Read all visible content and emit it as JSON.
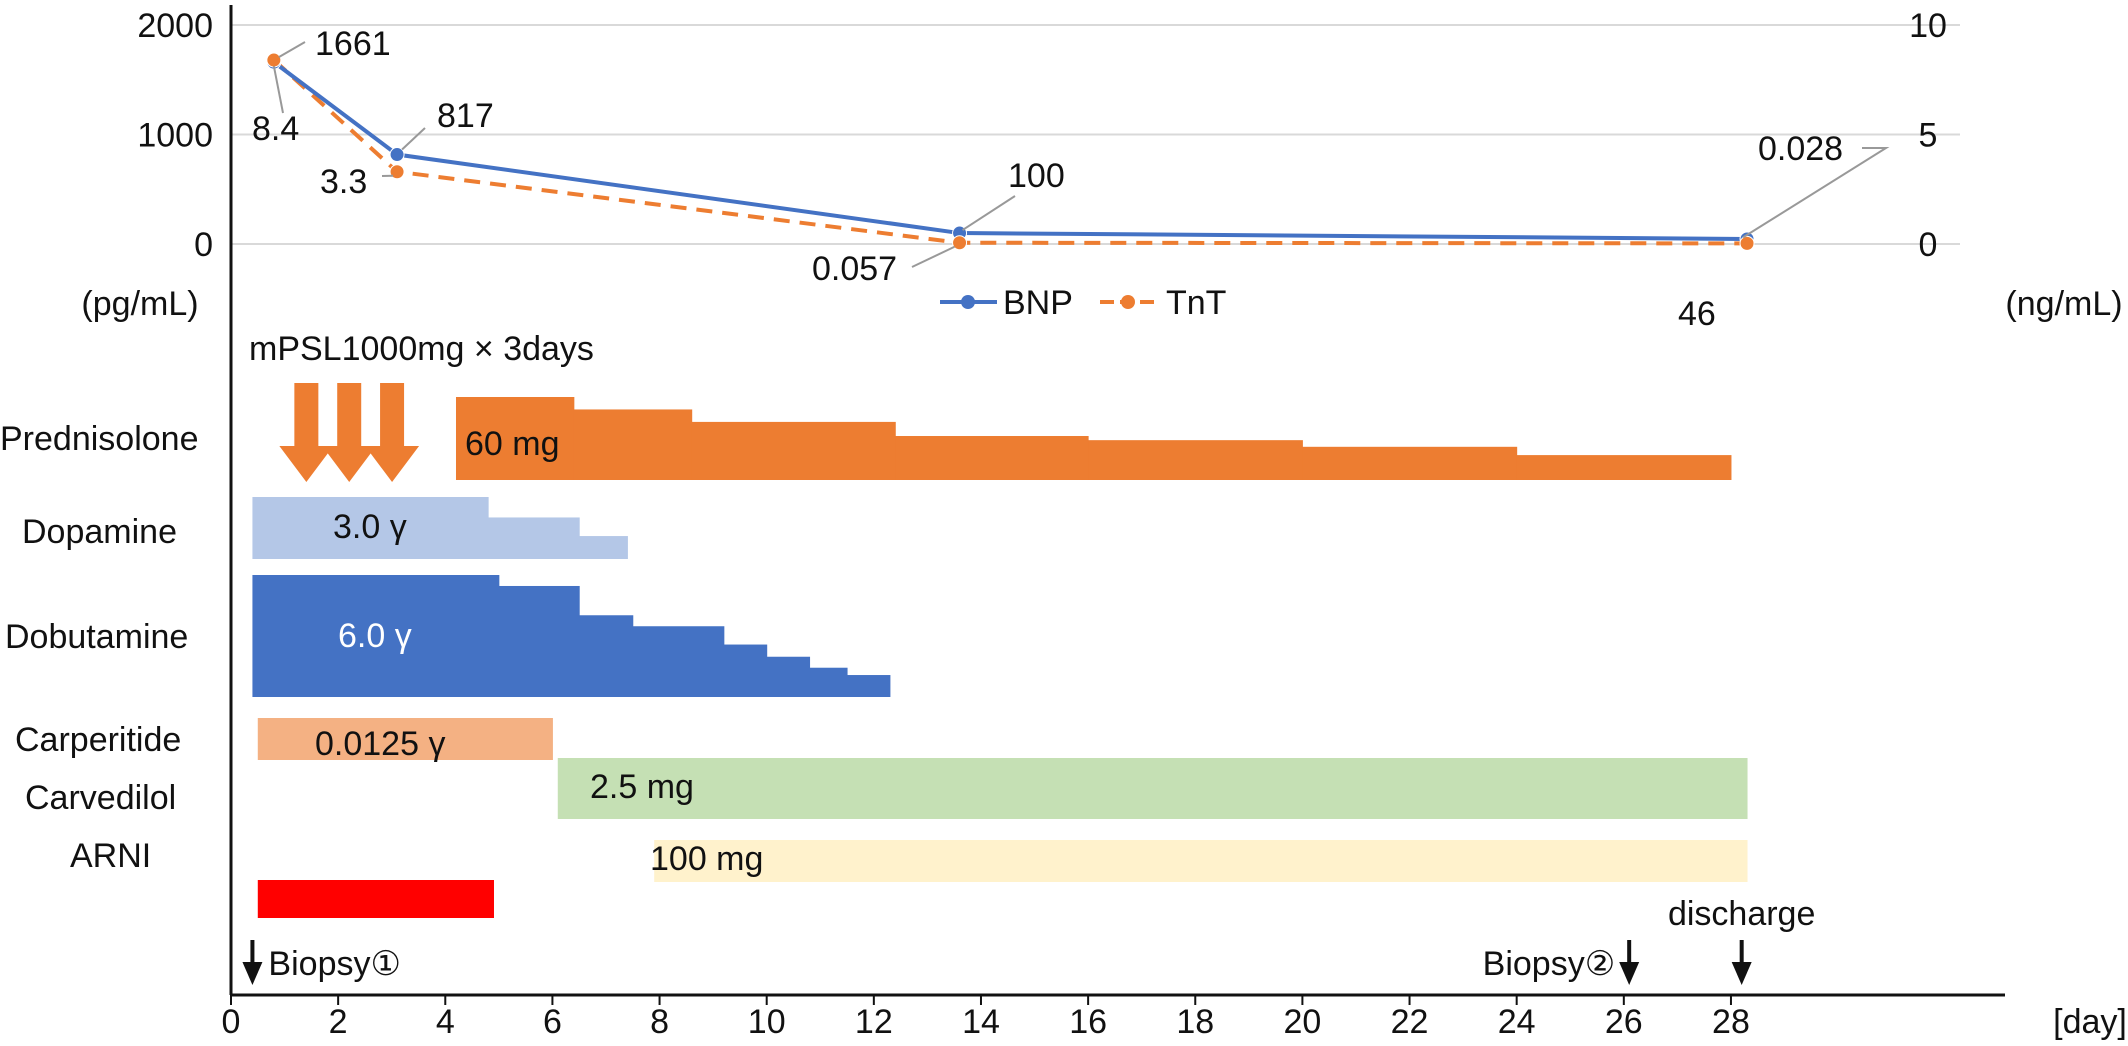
{
  "chart_data": {
    "type": "line",
    "title": "",
    "xlabel": "[day]",
    "y_left_label": "(pg/mL)",
    "y_right_label": "(ng/mL)",
    "xlim": [
      0,
      33
    ],
    "ylim_left": [
      0,
      2000
    ],
    "ylim_right": [
      0,
      10
    ],
    "x_ticks": [
      0,
      2,
      4,
      6,
      8,
      10,
      12,
      14,
      16,
      18,
      20,
      22,
      24,
      26,
      28
    ],
    "y_left_ticks": [
      0,
      1000,
      2000
    ],
    "y_right_ticks": [
      0,
      5,
      10
    ],
    "legend_position": "bottom-center",
    "grid": true,
    "series": [
      {
        "name": "BNP",
        "axis": "left",
        "color": "#4472C4",
        "line_style": "solid",
        "points": [
          {
            "x": 0.8,
            "y": 1661
          },
          {
            "x": 3.1,
            "y": 817
          },
          {
            "x": 13.6,
            "y": 100
          },
          {
            "x": 28.3,
            "y": 46
          }
        ],
        "point_labels": [
          "1661",
          "817",
          "100",
          "46"
        ]
      },
      {
        "name": "TnT",
        "axis": "right",
        "color": "#ED7D31",
        "line_style": "dashed",
        "points": [
          {
            "x": 0.8,
            "y": 8.4
          },
          {
            "x": 3.1,
            "y": 3.3
          },
          {
            "x": 13.6,
            "y": 0.057
          },
          {
            "x": 28.3,
            "y": 0.028
          }
        ],
        "point_labels": [
          "8.4",
          "3.3",
          "0.057",
          "0.028"
        ]
      }
    ],
    "mpsl_label": "mPSL1000mg × 3days",
    "mpsl_days": [
      1.5,
      2.3,
      3.1
    ],
    "mpsl_color": "#ED7D31",
    "treatments": [
      {
        "name": "Prednisolone",
        "color": "#ED7D31",
        "dose_label": "60 mg",
        "label_color": "#111111",
        "steps": [
          {
            "from": 4.2,
            "to": 6.4,
            "level": 1.0
          },
          {
            "from": 6.4,
            "to": 8.6,
            "level": 0.85
          },
          {
            "from": 8.6,
            "to": 12.4,
            "level": 0.7
          },
          {
            "from": 12.4,
            "to": 16.0,
            "level": 0.53
          },
          {
            "from": 16.0,
            "to": 20.0,
            "level": 0.48
          },
          {
            "from": 20.0,
            "to": 24.0,
            "level": 0.4
          },
          {
            "from": 24.0,
            "to": 28.0,
            "level": 0.3
          }
        ]
      },
      {
        "name": "Dopamine",
        "color": "#B4C7E7",
        "dose_label": "3.0 γ",
        "label_color": "#111111",
        "steps": [
          {
            "from": 0.4,
            "to": 4.8,
            "level": 1.0
          },
          {
            "from": 4.8,
            "to": 6.5,
            "level": 0.67
          },
          {
            "from": 6.5,
            "to": 7.4,
            "level": 0.37
          }
        ]
      },
      {
        "name": "Dobutamine",
        "color": "#4472C4",
        "dose_label": "6.0 γ",
        "label_color": "#ffffff",
        "steps": [
          {
            "from": 0.4,
            "to": 5.0,
            "level": 1.0
          },
          {
            "from": 5.0,
            "to": 6.5,
            "level": 0.91
          },
          {
            "from": 6.5,
            "to": 7.5,
            "level": 0.67
          },
          {
            "from": 7.5,
            "to": 9.2,
            "level": 0.58
          },
          {
            "from": 9.2,
            "to": 10.0,
            "level": 0.43
          },
          {
            "from": 10.0,
            "to": 10.8,
            "level": 0.33
          },
          {
            "from": 10.8,
            "to": 11.5,
            "level": 0.24
          },
          {
            "from": 11.5,
            "to": 12.3,
            "level": 0.18
          }
        ]
      },
      {
        "name": "Carperitide",
        "color": "#F4B183",
        "dose_label": "0.0125 γ",
        "label_color": "#111111",
        "steps": [
          {
            "from": 0.5,
            "to": 6.0,
            "level": 1.0
          }
        ]
      },
      {
        "name": "Carvedilol",
        "color": "#C5E0B4",
        "dose_label": "2.5 mg",
        "label_color": "#111111",
        "steps": [
          {
            "from": 6.1,
            "to": 28.3,
            "level": 1.0
          }
        ]
      },
      {
        "name": "ARNI",
        "color": "#FFF2CC",
        "dose_label": "100 mg",
        "label_color": "#111111",
        "steps": [
          {
            "from": 7.9,
            "to": 28.3,
            "level": 1.0
          }
        ]
      },
      {
        "name": "",
        "color": "#FF0000",
        "dose_label": "",
        "label_color": "#111111",
        "steps": [
          {
            "from": 0.5,
            "to": 4.9,
            "level": 1.0
          }
        ]
      }
    ],
    "events": [
      {
        "label": "Biopsy①",
        "day": 0.4,
        "label_side": "right"
      },
      {
        "label": "Biopsy②",
        "day": 26.1,
        "label_side": "left"
      },
      {
        "label": "discharge",
        "day": 28.2,
        "label_side": "above"
      }
    ]
  }
}
